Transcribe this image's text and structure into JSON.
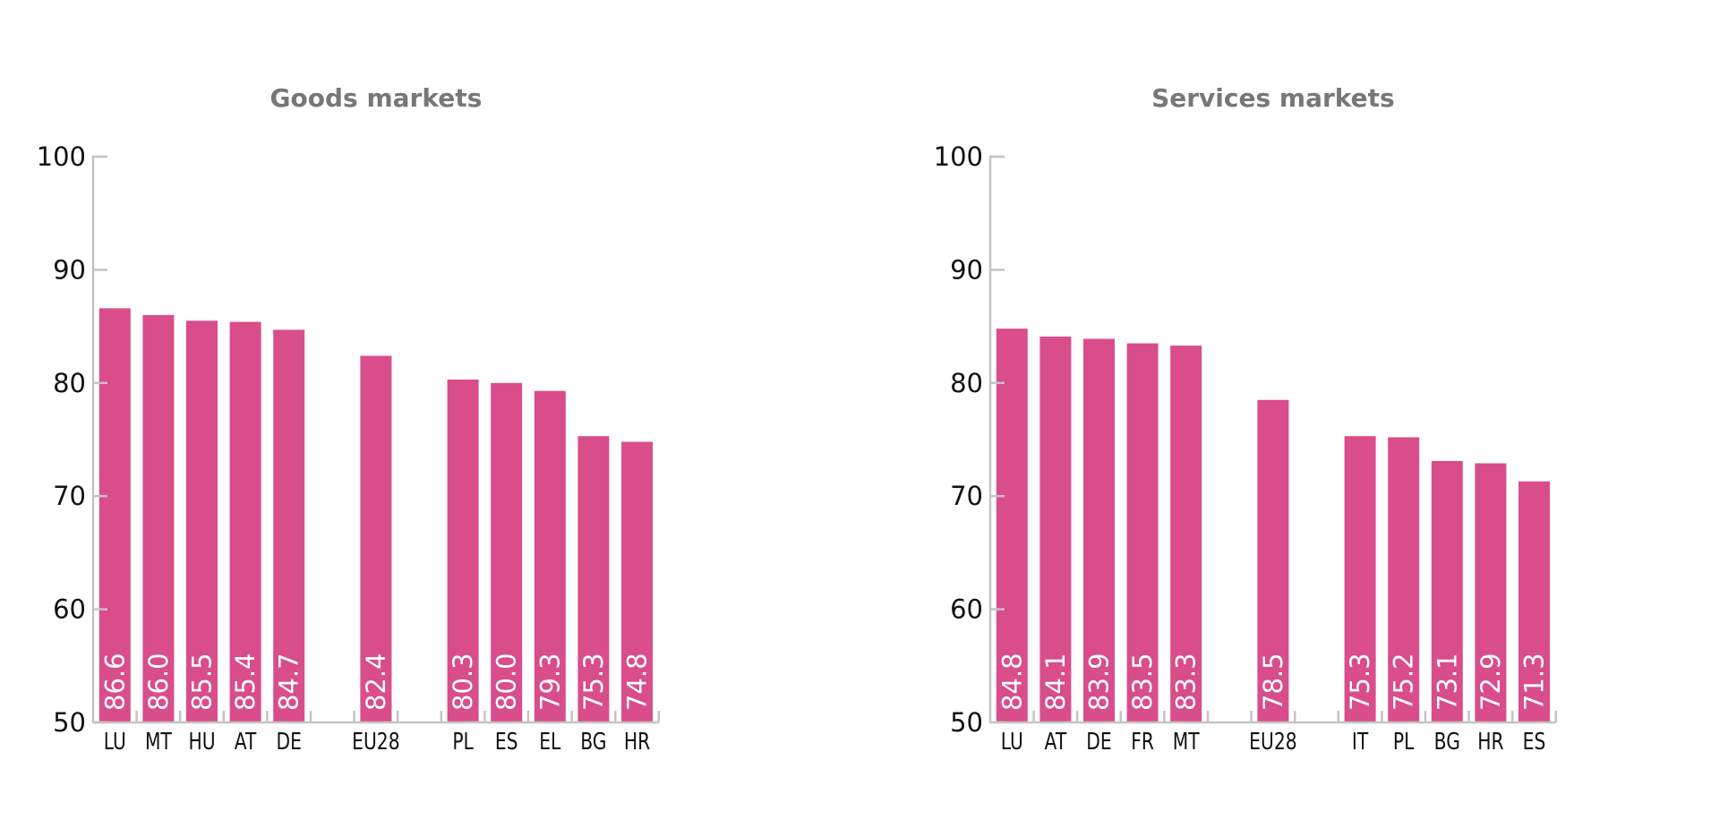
{
  "chart_data": [
    {
      "type": "bar",
      "title": "Goods markets",
      "xlabel": "",
      "ylabel": "",
      "ylim": [
        50,
        100
      ],
      "yticks": [
        50,
        60,
        70,
        80,
        90,
        100
      ],
      "grid": false,
      "legend": "none",
      "value_labels": "inside-bar-rotated",
      "color": "#d94d8b",
      "categories": [
        "LU",
        "MT",
        "HU",
        "AT",
        "DE",
        "",
        "EU28",
        "",
        "PL",
        "ES",
        "EL",
        "BG",
        "HR"
      ],
      "values": [
        86.6,
        86.0,
        85.5,
        85.4,
        84.7,
        null,
        82.4,
        null,
        80.3,
        80.0,
        79.3,
        75.3,
        74.8
      ],
      "value_text": [
        "86.6",
        "86.0",
        "85.5",
        "85.4",
        "84.7",
        "",
        "82.4",
        "",
        "80.3",
        "80.0",
        "79.3",
        "75.3",
        "74.8"
      ]
    },
    {
      "type": "bar",
      "title": "Services markets",
      "xlabel": "",
      "ylabel": "",
      "ylim": [
        50,
        100
      ],
      "yticks": [
        50,
        60,
        70,
        80,
        90,
        100
      ],
      "grid": false,
      "legend": "none",
      "value_labels": "inside-bar-rotated",
      "color": "#d94d8b",
      "categories": [
        "LU",
        "AT",
        "DE",
        "FR",
        "MT",
        "",
        "EU28",
        "",
        "IT",
        "PL",
        "BG",
        "HR",
        "ES"
      ],
      "values": [
        84.8,
        84.1,
        83.9,
        83.5,
        83.3,
        null,
        78.5,
        null,
        75.3,
        75.2,
        73.1,
        72.9,
        71.3
      ],
      "value_text": [
        "84.8",
        "84.1",
        "83.9",
        "83.5",
        "83.3",
        "",
        "78.5",
        "",
        "75.3",
        "75.2",
        "73.1",
        "72.9",
        "71.3"
      ]
    }
  ]
}
